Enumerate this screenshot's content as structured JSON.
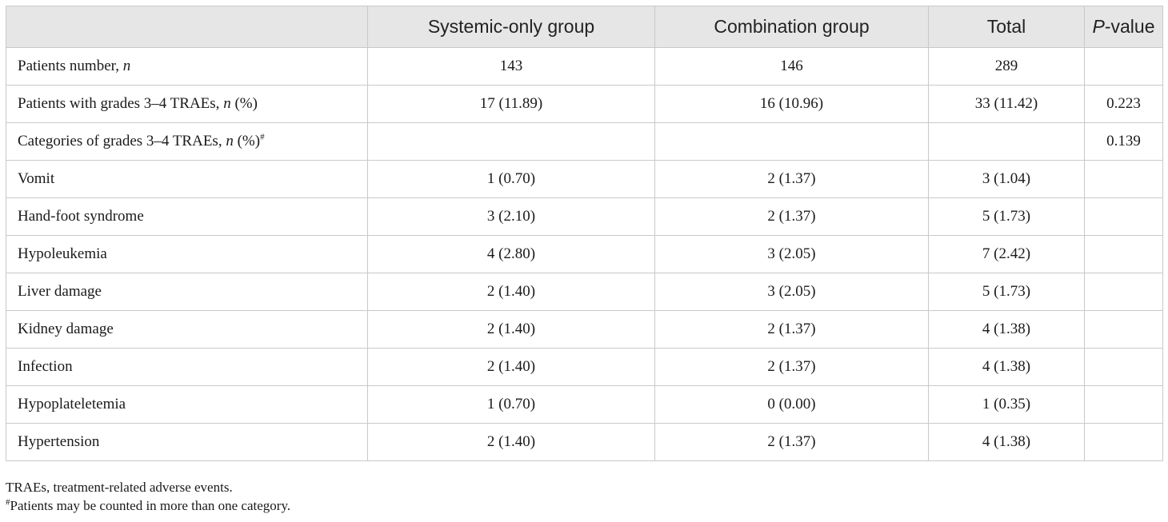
{
  "table": {
    "headers": {
      "c1": "",
      "c2": "Systemic-only group",
      "c3": "Combination group",
      "c4": "Total",
      "c5_italic": "P",
      "c5_rest": "-value"
    },
    "row_patients": {
      "label": "Patients number, ",
      "label_italic": "n",
      "c2": "143",
      "c3": "146",
      "c4": "289",
      "c5": ""
    },
    "row_grades": {
      "label": "Patients with grades 3–4 TRAEs, ",
      "label_italic": "n",
      "label_tail": " (%)",
      "c2": "17 (11.89)",
      "c3": "16 (10.96)",
      "c4": "33 (11.42)",
      "c5": "0.223"
    },
    "row_categories": {
      "label": "Categories of grades 3–4 TRAEs, ",
      "label_italic": "n",
      "label_tail": " (%)",
      "label_sup": "#",
      "c2": "",
      "c3": "",
      "c4": "",
      "c5": "0.139"
    },
    "rows": [
      {
        "label": "Vomit",
        "c2": "1 (0.70)",
        "c3": "2 (1.37)",
        "c4": "3 (1.04)",
        "c5": ""
      },
      {
        "label": "Hand-foot syndrome",
        "c2": "3 (2.10)",
        "c3": "2 (1.37)",
        "c4": "5 (1.73)",
        "c5": ""
      },
      {
        "label": "Hypoleukemia",
        "c2": "4 (2.80)",
        "c3": "3 (2.05)",
        "c4": "7 (2.42)",
        "c5": ""
      },
      {
        "label": "Liver damage",
        "c2": "2 (1.40)",
        "c3": "3 (2.05)",
        "c4": "5 (1.73)",
        "c5": ""
      },
      {
        "label": "Kidney damage",
        "c2": "2 (1.40)",
        "c3": "2 (1.37)",
        "c4": "4 (1.38)",
        "c5": ""
      },
      {
        "label": "Infection",
        "c2": "2 (1.40)",
        "c3": "2 (1.37)",
        "c4": "4 (1.38)",
        "c5": ""
      },
      {
        "label": "Hypoplateletemia",
        "c2": "1 (0.70)",
        "c3": "0 (0.00)",
        "c4": "1 (0.35)",
        "c5": ""
      },
      {
        "label": "Hypertension",
        "c2": "2 (1.40)",
        "c3": "2 (1.37)",
        "c4": "4 (1.38)",
        "c5": ""
      }
    ]
  },
  "footnotes": {
    "abbreviation": "TRAEs, treatment-related adverse events.",
    "marker": "#",
    "note": "Patients may be counted in more than one category."
  }
}
